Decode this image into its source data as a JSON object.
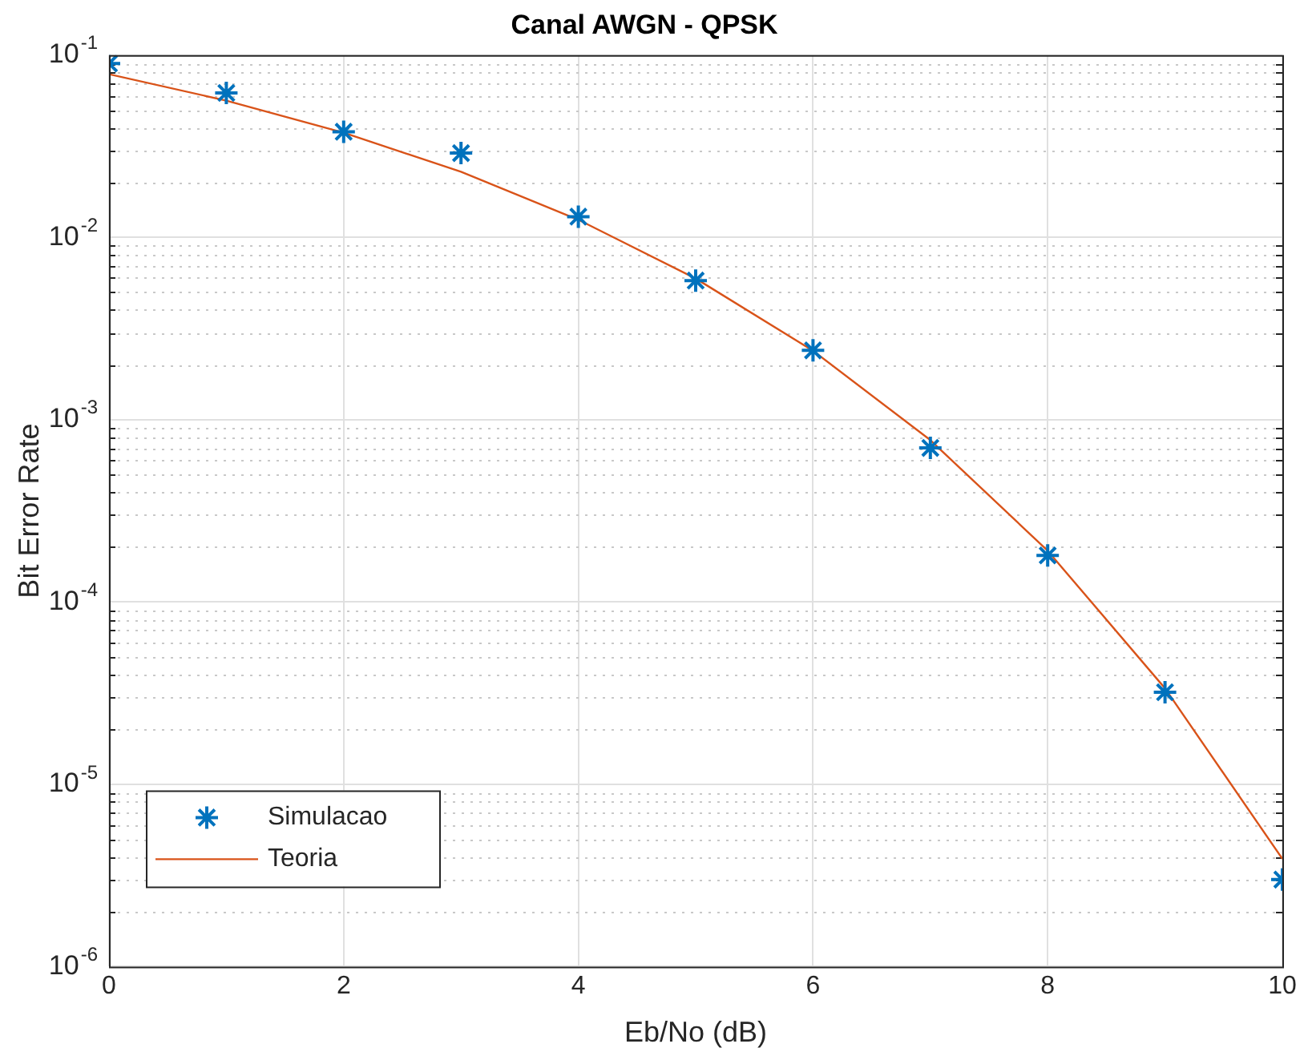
{
  "chart_data": {
    "type": "line",
    "title": "Canal AWGN - QPSK",
    "xlabel": "Eb/No (dB)",
    "ylabel": "Bit Error Rate",
    "x": [
      0,
      1,
      2,
      3,
      4,
      5,
      6,
      7,
      8,
      9,
      10
    ],
    "series": [
      {
        "name": "Simulacao",
        "type": "scatter",
        "color": "#0072bd",
        "marker": "cross",
        "values": [
          0.09,
          0.062,
          0.038,
          0.029,
          0.013,
          0.0058,
          0.0024,
          0.0007,
          0.00018,
          3.2e-05,
          3e-06
        ]
      },
      {
        "name": "Teoria",
        "color": "#d95319",
        "marker": "none",
        "line_style": "solid",
        "values": [
          0.0786,
          0.0563,
          0.0375,
          0.0229,
          0.0125,
          0.00595,
          0.00239,
          0.000773,
          0.000191,
          3.36e-05,
          3.9e-06
        ]
      }
    ],
    "xlim": [
      0,
      10
    ],
    "xticks": [
      0,
      2,
      4,
      6,
      8,
      10
    ],
    "ylim": [
      1e-06,
      0.1
    ],
    "yticks": [
      {
        "value": 1e-06,
        "label": "10$^{-6}$"
      },
      {
        "value": 1e-05,
        "label": "10$^{-5}$"
      },
      {
        "value": 0.0001,
        "label": "10$^{-4}$"
      },
      {
        "value": 0.001,
        "label": "10$^{-3}$"
      },
      {
        "value": 0.01,
        "label": "10$^{-2}$"
      },
      {
        "value": 0.1,
        "label": "10$^{-1}$"
      }
    ],
    "log": "y",
    "grid": true,
    "legend": "bottom left"
  }
}
